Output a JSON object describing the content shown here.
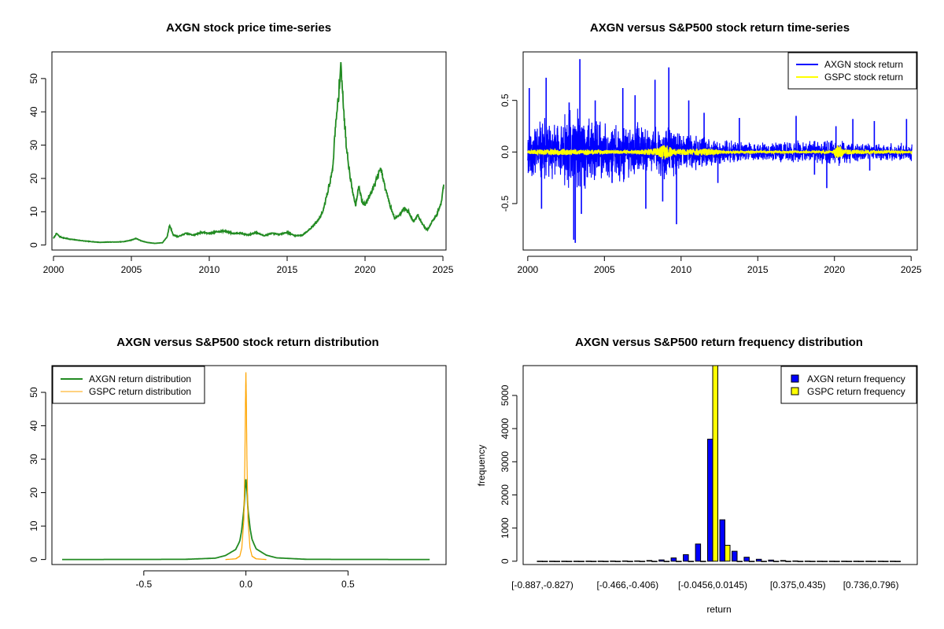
{
  "colors": {
    "price": "#228B22",
    "axgn_return": "#0000FF",
    "gspc_return": "#FFFF00",
    "axgn_density": "#228B22",
    "gspc_density": "#FFA500",
    "axis": "#000000"
  },
  "chart_data": [
    {
      "id": "price",
      "type": "line",
      "title": "AXGN stock price time-series",
      "xlabel": "",
      "ylabel": "",
      "xlim": [
        1999.9,
        2025.2
      ],
      "ylim": [
        -1.5,
        58
      ],
      "xticks": [
        2000,
        2005,
        2010,
        2015,
        2020,
        2025
      ],
      "xtick_labels": [
        "2000",
        "2005",
        "2010",
        "2015",
        "2020",
        "2025"
      ],
      "yticks": [
        0,
        10,
        20,
        30,
        40,
        50
      ],
      "ytick_labels": [
        "0",
        "10",
        "20",
        "30",
        "40",
        "50"
      ],
      "series": [
        {
          "name": "AXGN price",
          "x": [
            2000.0,
            2000.2,
            2000.4,
            2000.6,
            2001.0,
            2001.5,
            2002.0,
            2002.5,
            2003.0,
            2003.5,
            2004.0,
            2004.5,
            2005.0,
            2005.3,
            2005.6,
            2006.0,
            2006.5,
            2007.0,
            2007.3,
            2007.45,
            2007.7,
            2008.0,
            2008.5,
            2009.0,
            2009.5,
            2010.0,
            2010.5,
            2011.0,
            2011.5,
            2012.0,
            2012.5,
            2013.0,
            2013.5,
            2014.0,
            2014.5,
            2015.0,
            2015.5,
            2016.0,
            2016.5,
            2017.0,
            2017.3,
            2017.6,
            2017.9,
            2018.1,
            2018.3,
            2018.45,
            2018.6,
            2018.8,
            2019.0,
            2019.2,
            2019.4,
            2019.6,
            2019.8,
            2020.0,
            2020.3,
            2020.6,
            2021.0,
            2021.3,
            2021.6,
            2021.9,
            2022.2,
            2022.5,
            2022.8,
            2023.1,
            2023.4,
            2023.7,
            2024.0,
            2024.3,
            2024.6,
            2024.9,
            2025.05
          ],
          "y": [
            2.0,
            3.5,
            2.5,
            2.2,
            1.8,
            1.5,
            1.2,
            1.0,
            0.8,
            0.9,
            0.9,
            1.0,
            1.5,
            2.0,
            1.3,
            0.8,
            0.5,
            0.7,
            2.5,
            6.0,
            3.0,
            2.5,
            3.5,
            3.0,
            3.8,
            3.5,
            4.0,
            4.2,
            3.5,
            3.6,
            3.0,
            3.8,
            2.8,
            3.5,
            3.2,
            3.8,
            2.8,
            3.0,
            5.0,
            7.5,
            10.0,
            16.0,
            22.0,
            35.0,
            45.0,
            55.0,
            42.0,
            30.0,
            22.0,
            16.0,
            12.0,
            18.0,
            13.0,
            12.0,
            15.0,
            18.0,
            23.0,
            17.0,
            12.0,
            8.0,
            9.0,
            11.0,
            10.0,
            7.0,
            9.0,
            6.0,
            4.5,
            7.0,
            9.0,
            13.0,
            18.0
          ]
        }
      ]
    },
    {
      "id": "returns",
      "type": "line",
      "title": "AXGN versus S&P500 stock return time-series",
      "xlabel": "",
      "ylabel": "",
      "xlim": [
        1999.7,
        2025.4
      ],
      "ylim": [
        -0.95,
        0.97
      ],
      "xticks": [
        2000,
        2005,
        2010,
        2015,
        2020,
        2025
      ],
      "xtick_labels": [
        "2000",
        "2005",
        "2010",
        "2015",
        "2020",
        "2025"
      ],
      "yticks": [
        -0.5,
        0.0,
        0.5
      ],
      "ytick_labels": [
        "-0.5",
        "0.0",
        "0.5"
      ],
      "legend": {
        "position": "top-right",
        "entries": [
          "AXGN stock return",
          "GSPC stock return"
        ]
      },
      "series": [
        {
          "name": "AXGN stock return",
          "envelope_x": [
            2000,
            2001,
            2002,
            2003,
            2003.5,
            2004,
            2005,
            2006,
            2007,
            2008,
            2009,
            2010,
            2011,
            2012,
            2013,
            2014,
            2015,
            2016,
            2017,
            2018,
            2019,
            2020,
            2021,
            2022,
            2023,
            2024,
            2025
          ],
          "envelope_amp": [
            0.3,
            0.35,
            0.3,
            0.5,
            0.45,
            0.4,
            0.3,
            0.3,
            0.3,
            0.25,
            0.3,
            0.22,
            0.18,
            0.15,
            0.12,
            0.12,
            0.1,
            0.1,
            0.12,
            0.12,
            0.12,
            0.15,
            0.12,
            0.1,
            0.09,
            0.09,
            0.1
          ],
          "spikes": [
            [
              2000.1,
              0.62
            ],
            [
              2000.2,
              -0.18
            ],
            [
              2000.9,
              -0.55
            ],
            [
              2001.2,
              0.72
            ],
            [
              2002.7,
              0.48
            ],
            [
              2003.0,
              -0.85
            ],
            [
              2003.1,
              -0.88
            ],
            [
              2003.4,
              0.9
            ],
            [
              2003.5,
              -0.6
            ],
            [
              2004.4,
              0.5
            ],
            [
              2005.5,
              -0.3
            ],
            [
              2006.2,
              0.62
            ],
            [
              2007.0,
              0.55
            ],
            [
              2007.7,
              -0.55
            ],
            [
              2008.3,
              0.7
            ],
            [
              2008.8,
              -0.48
            ],
            [
              2009.2,
              0.82
            ],
            [
              2009.7,
              -0.7
            ],
            [
              2010.5,
              0.5
            ],
            [
              2011.5,
              0.38
            ],
            [
              2012.4,
              -0.3
            ],
            [
              2013.8,
              0.33
            ],
            [
              2017.5,
              0.35
            ],
            [
              2018.7,
              -0.22
            ],
            [
              2019.5,
              -0.35
            ],
            [
              2020.1,
              0.25
            ],
            [
              2021.2,
              0.32
            ],
            [
              2022.3,
              -0.18
            ],
            [
              2022.6,
              0.3
            ],
            [
              2024.7,
              0.32
            ]
          ]
        },
        {
          "name": "GSPC stock return",
          "envelope_x": [
            2000,
            2002,
            2003,
            2007,
            2008.5,
            2008.9,
            2009.5,
            2011.6,
            2013,
            2019.9,
            2020.2,
            2020.6,
            2022,
            2025
          ],
          "envelope_amp": [
            0.02,
            0.03,
            0.025,
            0.015,
            0.04,
            0.08,
            0.03,
            0.035,
            0.012,
            0.012,
            0.08,
            0.025,
            0.02,
            0.012
          ]
        }
      ]
    },
    {
      "id": "density",
      "type": "line",
      "title": "AXGN versus S&P500 stock return distribution",
      "xlabel": "",
      "ylabel": "",
      "xlim": [
        -0.95,
        0.98
      ],
      "ylim": [
        -1.5,
        58
      ],
      "xticks": [
        -0.5,
        0.0,
        0.5
      ],
      "xtick_labels": [
        "-0.5",
        "0.0",
        "0.5"
      ],
      "yticks": [
        0,
        10,
        20,
        30,
        40,
        50
      ],
      "ytick_labels": [
        "0",
        "10",
        "20",
        "30",
        "40",
        "50"
      ],
      "legend": {
        "position": "top-left",
        "entries": [
          "AXGN return distribution",
          "GSPC return distribution"
        ]
      },
      "series": [
        {
          "name": "AXGN return distribution",
          "x": [
            -0.9,
            -0.3,
            -0.15,
            -0.1,
            -0.05,
            -0.03,
            -0.02,
            -0.01,
            -0.005,
            0.0,
            0.005,
            0.01,
            0.02,
            0.03,
            0.05,
            0.1,
            0.15,
            0.3,
            0.9
          ],
          "y": [
            0.0,
            0.05,
            0.4,
            1.2,
            3.0,
            5.5,
            9.0,
            15.0,
            20.0,
            24.0,
            21.0,
            15.0,
            9.5,
            6.0,
            3.2,
            1.3,
            0.5,
            0.05,
            0.0
          ]
        },
        {
          "name": "GSPC return distribution",
          "x": [
            -0.1,
            -0.05,
            -0.03,
            -0.02,
            -0.01,
            -0.005,
            -0.002,
            0.0,
            0.002,
            0.005,
            0.01,
            0.02,
            0.03,
            0.05,
            0.1
          ],
          "y": [
            0.0,
            0.2,
            1.0,
            3.5,
            12.0,
            30.0,
            48.0,
            56.0,
            48.0,
            30.0,
            12.0,
            3.5,
            1.0,
            0.2,
            0.0
          ]
        }
      ]
    },
    {
      "id": "histogram",
      "type": "bar",
      "title": "AXGN versus S&P500 return frequency distribution",
      "xlabel": "return",
      "ylabel": "frequency",
      "ylim": [
        -100,
        5900
      ],
      "yticks": [
        0,
        1000,
        2000,
        3000,
        4000,
        5000
      ],
      "ytick_labels": [
        "0",
        "1000",
        "2000",
        "3000",
        "4000",
        "5000"
      ],
      "xtick_labels": [
        "[-0.887,-0.827)",
        "[-0.466,-0.406)",
        "[-0.0456,0.0145)",
        "[0.375,0.435)",
        "[0.736,0.796)"
      ],
      "xtick_categories": [
        1,
        8,
        15,
        22,
        28
      ],
      "legend": {
        "position": "top-right",
        "entries": [
          "AXGN return frequency",
          "GSPC return frequency"
        ]
      },
      "categories": [
        "1",
        "2",
        "3",
        "4",
        "5",
        "6",
        "7",
        "8",
        "9",
        "10",
        "11",
        "12",
        "13",
        "14",
        "15",
        "16",
        "17",
        "18",
        "19",
        "20",
        "21",
        "22",
        "23",
        "24",
        "25",
        "26",
        "27",
        "28",
        "29",
        "30"
      ],
      "series": [
        {
          "name": "AXGN return frequency",
          "values": [
            2,
            1,
            2,
            3,
            4,
            5,
            6,
            8,
            10,
            20,
            40,
            100,
            200,
            520,
            3680,
            1250,
            300,
            120,
            60,
            35,
            20,
            8,
            5,
            3,
            2,
            2,
            1,
            1,
            1,
            2
          ]
        },
        {
          "name": "GSPC return frequency",
          "values": [
            0,
            0,
            0,
            0,
            0,
            0,
            0,
            0,
            0,
            0,
            0,
            0,
            0,
            0,
            5900,
            480,
            0,
            0,
            0,
            0,
            0,
            0,
            0,
            0,
            0,
            0,
            0,
            0,
            0,
            0
          ]
        }
      ]
    }
  ]
}
